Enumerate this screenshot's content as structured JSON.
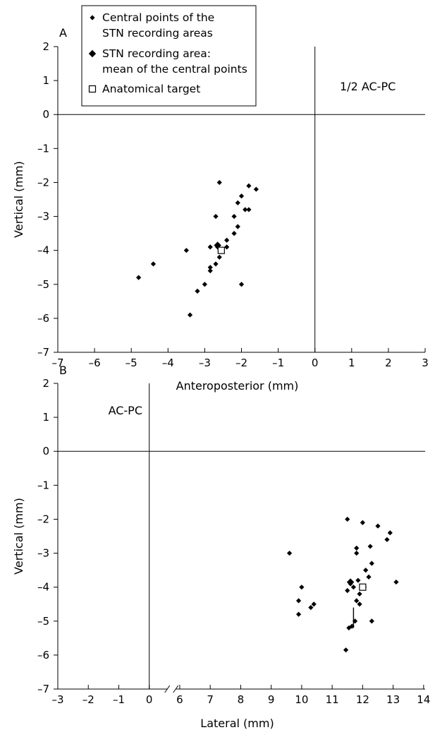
{
  "chart_data": [
    {
      "type": "scatter",
      "panel_label": "A",
      "xlabel": "Anteroposterior (mm)",
      "ylabel": "Vertical (mm)",
      "xlim": [
        -7,
        3
      ],
      "ylim": [
        -7,
        2
      ],
      "x_ticks": [
        -7,
        -6,
        -5,
        -4,
        -3,
        -2,
        -1,
        0,
        1,
        2,
        3
      ],
      "y_ticks": [
        2,
        1,
        0,
        -1,
        -2,
        -3,
        -4,
        -5,
        -6,
        -7
      ],
      "x_tick_labels": [
        "–7",
        "–6",
        "–5",
        "–4",
        "–3",
        "–2",
        "–1",
        "0",
        "1",
        "2",
        "3"
      ],
      "y_tick_labels": [
        "2",
        "1",
        "0",
        "–1",
        "–2",
        "–3",
        "–4",
        "–5",
        "–6",
        "–7"
      ],
      "grid": false,
      "reference_lines": {
        "x": 0,
        "y": 0
      },
      "reference_label": "1/2 AC-PC",
      "series": [
        {
          "name": "Central points of the STN recording areas",
          "marker": "small-diamond",
          "points": [
            [
              -4.8,
              -4.8
            ],
            [
              -4.4,
              -4.4
            ],
            [
              -3.5,
              -4.0
            ],
            [
              -3.4,
              -5.9
            ],
            [
              -3.2,
              -5.2
            ],
            [
              -3.0,
              -5.0
            ],
            [
              -2.85,
              -4.6
            ],
            [
              -2.85,
              -3.9
            ],
            [
              -2.85,
              -4.5
            ],
            [
              -2.7,
              -4.4
            ],
            [
              -2.7,
              -3.0
            ],
            [
              -2.65,
              -3.9
            ],
            [
              -2.6,
              -2.0
            ],
            [
              -2.6,
              -4.2
            ],
            [
              -2.55,
              -4.0
            ],
            [
              -2.4,
              -3.9
            ],
            [
              -2.4,
              -3.7
            ],
            [
              -2.2,
              -3.5
            ],
            [
              -2.2,
              -3.0
            ],
            [
              -2.1,
              -3.3
            ],
            [
              -2.1,
              -2.6
            ],
            [
              -2.0,
              -2.4
            ],
            [
              -2.0,
              -5.0
            ],
            [
              -1.9,
              -2.8
            ],
            [
              -1.8,
              -2.1
            ],
            [
              -1.8,
              -2.8
            ],
            [
              -1.6,
              -2.2
            ]
          ]
        },
        {
          "name": "STN recording area: mean of the central points",
          "marker": "large-diamond",
          "points": [
            [
              -2.65,
              -3.85
            ]
          ]
        },
        {
          "name": "Anatomical target",
          "marker": "open-square",
          "points": [
            [
              -2.55,
              -4.0
            ]
          ]
        }
      ],
      "legend": {
        "placement": "top-left",
        "entries": [
          {
            "marker": "small-diamond",
            "lines": [
              "Central points of the",
              "STN recording areas"
            ]
          },
          {
            "marker": "large-diamond",
            "lines": [
              "STN recording area:",
              "mean of the central points"
            ]
          },
          {
            "marker": "open-square",
            "lines": [
              "Anatomical target"
            ]
          }
        ]
      }
    },
    {
      "type": "scatter",
      "panel_label": "B",
      "xlabel": "Lateral (mm)",
      "ylabel": "Vertical (mm)",
      "xlim": [
        -3,
        14
      ],
      "ylim": [
        -7,
        2
      ],
      "x_axis_break": "between 0 and 6",
      "x_ticks": [
        -3,
        -2,
        -1,
        0,
        6,
        7,
        8,
        9,
        10,
        11,
        12,
        13,
        14
      ],
      "y_ticks": [
        2,
        1,
        0,
        -1,
        -2,
        -3,
        -4,
        -5,
        -6,
        -7
      ],
      "x_tick_labels": [
        "–3",
        "–2",
        "–1",
        "0",
        "6",
        "7",
        "8",
        "9",
        "10",
        "11",
        "12",
        "13",
        "14"
      ],
      "y_tick_labels": [
        "2",
        "1",
        "0",
        "–1",
        "–2",
        "–3",
        "–4",
        "–5",
        "–6",
        "–7"
      ],
      "grid": false,
      "reference_lines": {
        "x": 0,
        "y": 0
      },
      "reference_label": "AC-PC",
      "series": [
        {
          "name": "Central points of the STN recording areas",
          "marker": "small-diamond",
          "points": [
            [
              9.6,
              -3.0
            ],
            [
              9.9,
              -4.4
            ],
            [
              9.9,
              -4.8
            ],
            [
              10.0,
              -4.0
            ],
            [
              10.3,
              -4.6
            ],
            [
              10.4,
              -4.5
            ],
            [
              11.45,
              -5.85
            ],
            [
              11.5,
              -2.0
            ],
            [
              11.5,
              -4.1
            ],
            [
              11.55,
              -5.2
            ],
            [
              11.6,
              -3.9
            ],
            [
              11.65,
              -5.15
            ],
            [
              11.7,
              -4.0
            ],
            [
              11.75,
              -5.0
            ],
            [
              11.8,
              -2.85
            ],
            [
              11.8,
              -3.0
            ],
            [
              11.8,
              -4.4
            ],
            [
              11.85,
              -3.8
            ],
            [
              11.9,
              -4.5
            ],
            [
              11.9,
              -4.2
            ],
            [
              12.0,
              -2.1
            ],
            [
              12.05,
              -4.0
            ],
            [
              12.1,
              -3.5
            ],
            [
              12.2,
              -3.7
            ],
            [
              12.25,
              -2.8
            ],
            [
              12.3,
              -3.3
            ],
            [
              12.3,
              -5.0
            ],
            [
              12.5,
              -2.2
            ],
            [
              12.8,
              -2.6
            ],
            [
              12.9,
              -2.4
            ],
            [
              13.1,
              -3.85
            ]
          ]
        },
        {
          "name": "STN recording area: mean of the central points",
          "marker": "large-diamond",
          "points": [
            [
              11.6,
              -3.85
            ]
          ]
        },
        {
          "name": "Anatomical target",
          "marker": "open-square",
          "points": [
            [
              12.0,
              -4.0
            ]
          ]
        }
      ]
    }
  ]
}
